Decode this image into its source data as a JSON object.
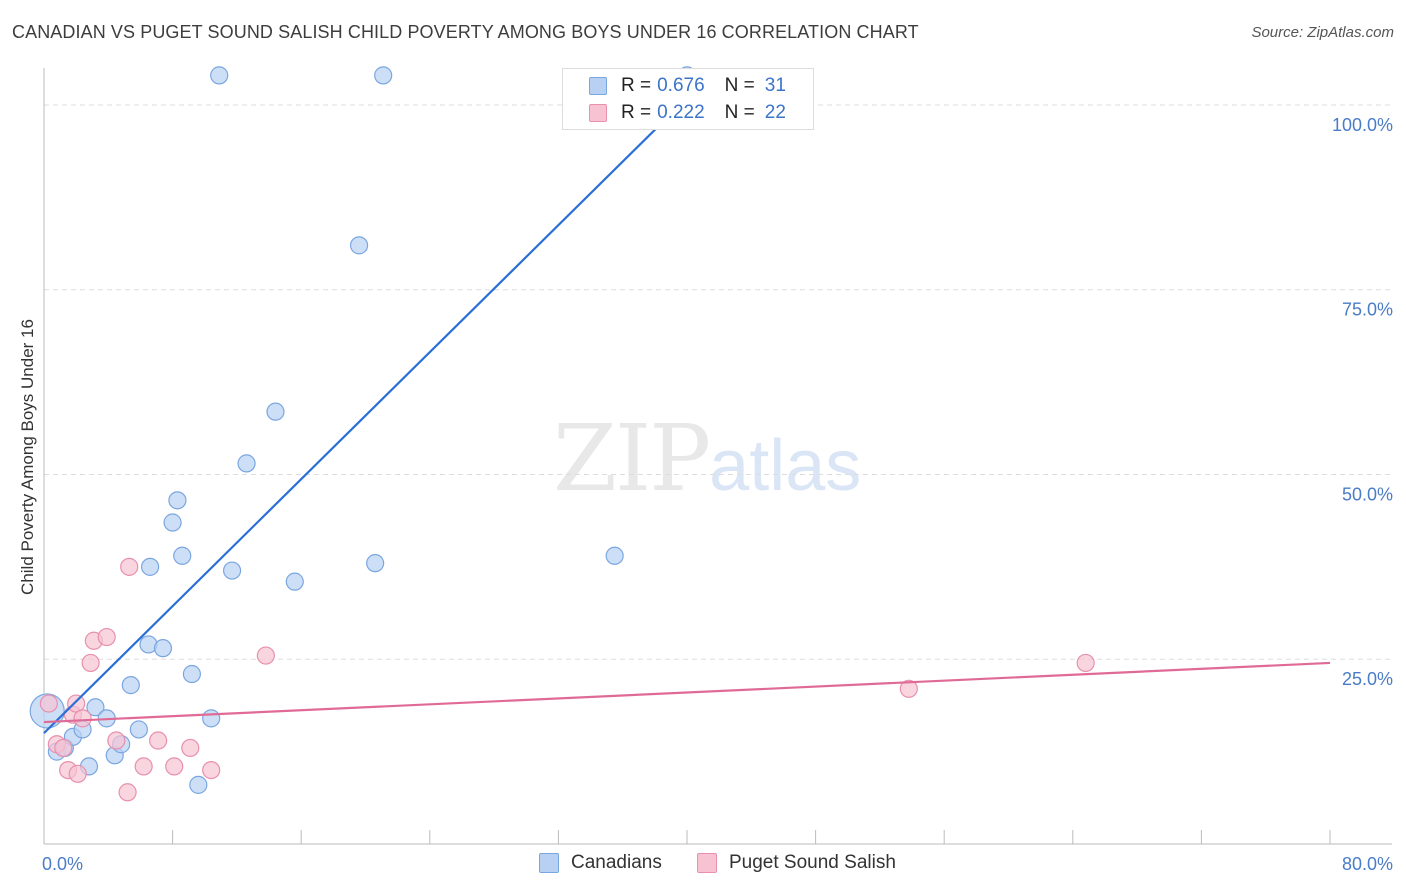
{
  "title": "CANADIAN VS PUGET SOUND SALISH CHILD POVERTY AMONG BOYS UNDER 16 CORRELATION CHART",
  "source": "Source: ZipAtlas.com",
  "watermark": {
    "zip": "ZIP",
    "atlas": "atlas"
  },
  "colors": {
    "canadians_fill": "#b8d1f3",
    "canadians_stroke": "#7aa6e0",
    "canadians_line": "#2a6fd6",
    "salish_fill": "#f7c3d3",
    "salish_stroke": "#e890ad",
    "salish_line": "#e06a96",
    "grid": "#dddddd",
    "tick_text": "#4a7cc7"
  },
  "legend": {
    "rows": [
      {
        "r_label": "R =",
        "r_value": "0.676",
        "n_label": "N =",
        "n_value": "31"
      },
      {
        "r_label": "R =",
        "r_value": "0.222",
        "n_label": "N =",
        "n_value": "22"
      }
    ]
  },
  "bottom_legend": [
    "Canadians",
    "Puget Sound Salish"
  ],
  "chart_data": {
    "type": "scatter",
    "title": "CANADIAN VS PUGET SOUND SALISH CHILD POVERTY AMONG BOYS UNDER 16 CORRELATION CHART",
    "xlabel": "",
    "ylabel": "Child Poverty Among Boys Under 16",
    "xlim": [
      0,
      80
    ],
    "ylim": [
      0,
      105
    ],
    "x_tick_labels": [
      {
        "value": 0,
        "label": "0.0%"
      },
      {
        "value": 80,
        "label": "80.0%"
      }
    ],
    "y_tick_labels": [
      {
        "value": 25,
        "label": "25.0%"
      },
      {
        "value": 50,
        "label": "50.0%"
      },
      {
        "value": 75,
        "label": "75.0%"
      },
      {
        "value": 100,
        "label": "100.0%"
      }
    ],
    "x_minor_ticks": [
      0,
      8,
      16,
      24,
      32,
      40,
      48,
      56,
      64,
      72,
      80
    ],
    "series": [
      {
        "name": "Canadians",
        "r": 0.676,
        "n": 31,
        "trend": {
          "x0": 0,
          "y0": 15.0,
          "x1": 40.5,
          "y1": 102
        },
        "points": [
          {
            "x": 0.2,
            "y": 18.0,
            "big": true
          },
          {
            "x": 0.8,
            "y": 12.5
          },
          {
            "x": 1.3,
            "y": 13.0
          },
          {
            "x": 1.8,
            "y": 14.5
          },
          {
            "x": 2.4,
            "y": 15.5
          },
          {
            "x": 2.8,
            "y": 10.5
          },
          {
            "x": 3.2,
            "y": 18.5
          },
          {
            "x": 3.9,
            "y": 17.0
          },
          {
            "x": 4.4,
            "y": 12.0
          },
          {
            "x": 4.8,
            "y": 13.5
          },
          {
            "x": 5.4,
            "y": 21.5
          },
          {
            "x": 5.9,
            "y": 15.5
          },
          {
            "x": 6.5,
            "y": 27.0
          },
          {
            "x": 6.6,
            "y": 37.5
          },
          {
            "x": 7.4,
            "y": 26.5
          },
          {
            "x": 8.0,
            "y": 43.5
          },
          {
            "x": 8.3,
            "y": 46.5
          },
          {
            "x": 8.6,
            "y": 39.0
          },
          {
            "x": 9.2,
            "y": 23.0
          },
          {
            "x": 9.6,
            "y": 8.0
          },
          {
            "x": 10.4,
            "y": 17.0
          },
          {
            "x": 10.9,
            "y": 104
          },
          {
            "x": 11.7,
            "y": 37.0
          },
          {
            "x": 12.6,
            "y": 51.5
          },
          {
            "x": 14.4,
            "y": 58.5
          },
          {
            "x": 15.6,
            "y": 35.5
          },
          {
            "x": 19.6,
            "y": 81.0
          },
          {
            "x": 20.6,
            "y": 38.0
          },
          {
            "x": 21.1,
            "y": 104
          },
          {
            "x": 35.5,
            "y": 39.0
          },
          {
            "x": 40.0,
            "y": 104
          }
        ]
      },
      {
        "name": "Puget Sound Salish",
        "r": 0.222,
        "n": 22,
        "trend": {
          "x0": 0,
          "y0": 16.5,
          "x1": 80,
          "y1": 24.5
        },
        "points": [
          {
            "x": 0.3,
            "y": 19.0
          },
          {
            "x": 0.8,
            "y": 13.5
          },
          {
            "x": 1.2,
            "y": 13.0
          },
          {
            "x": 1.5,
            "y": 10.0
          },
          {
            "x": 1.8,
            "y": 17.5
          },
          {
            "x": 2.0,
            "y": 19.0
          },
          {
            "x": 2.1,
            "y": 9.5
          },
          {
            "x": 2.4,
            "y": 17.0
          },
          {
            "x": 2.9,
            "y": 24.5
          },
          {
            "x": 3.1,
            "y": 27.5
          },
          {
            "x": 3.9,
            "y": 28.0
          },
          {
            "x": 4.5,
            "y": 14.0
          },
          {
            "x": 5.2,
            "y": 7.0
          },
          {
            "x": 5.3,
            "y": 37.5
          },
          {
            "x": 6.2,
            "y": 10.5
          },
          {
            "x": 7.1,
            "y": 14.0
          },
          {
            "x": 8.1,
            "y": 10.5
          },
          {
            "x": 9.1,
            "y": 13.0
          },
          {
            "x": 10.4,
            "y": 10.0
          },
          {
            "x": 13.8,
            "y": 25.5
          },
          {
            "x": 53.8,
            "y": 21.0
          },
          {
            "x": 64.8,
            "y": 24.5
          }
        ]
      }
    ]
  }
}
